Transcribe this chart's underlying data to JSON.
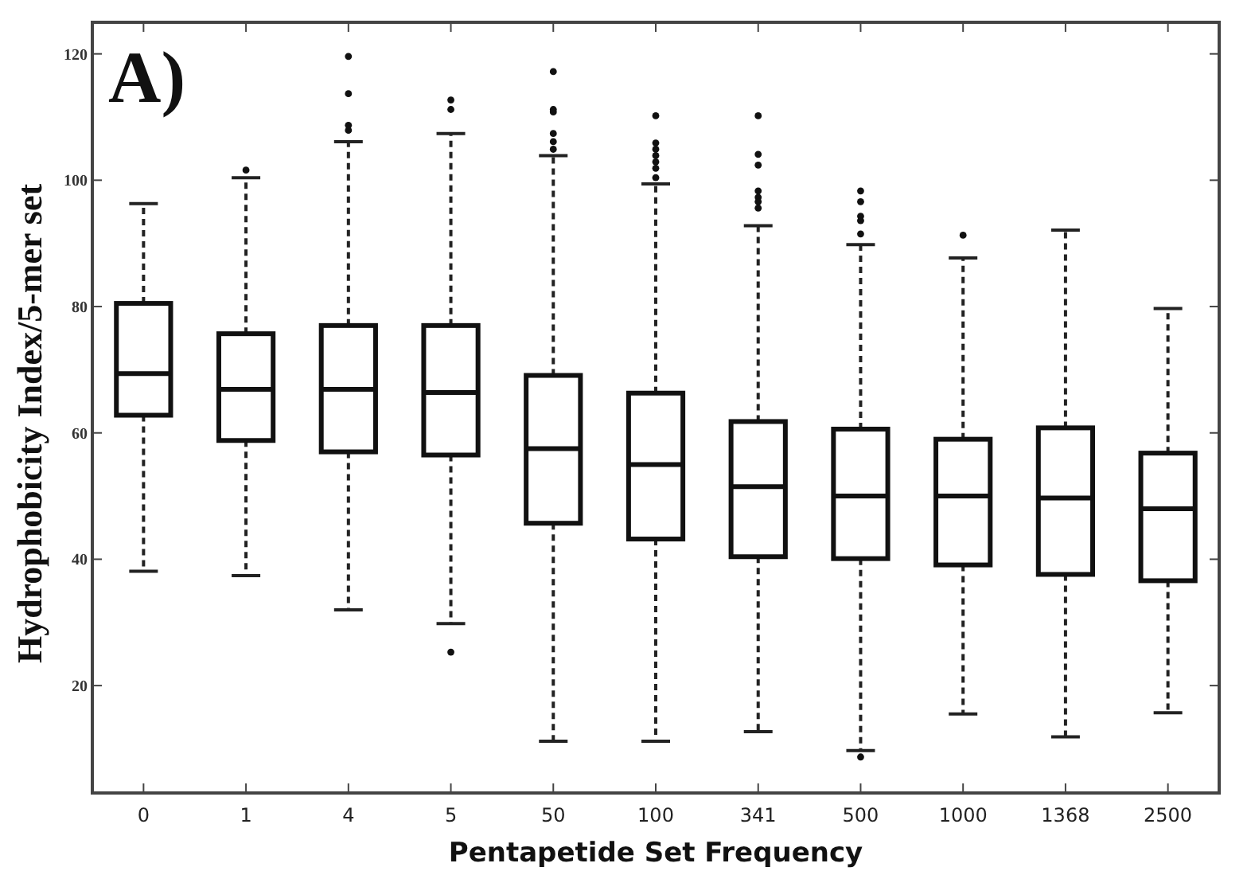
{
  "chart_data": {
    "type": "box",
    "xlabel": "Pentapetide Set Frequency",
    "ylabel": "Hydrophobicity Index/5-mer set",
    "annotations": [
      "A)"
    ],
    "categories": [
      "0",
      "1",
      "4",
      "5",
      "50",
      "100",
      "341",
      "500",
      "1000",
      "1368",
      "2500"
    ],
    "ylim": [
      3,
      125
    ],
    "yticks": [
      20,
      40,
      60,
      80,
      100,
      120
    ],
    "grid": false,
    "boxes": [
      {
        "low": 38.1,
        "q1": 62.8,
        "median": 69.4,
        "q3": 80.5,
        "high": 96.3
      },
      {
        "low": 37.4,
        "q1": 58.8,
        "median": 66.9,
        "q3": 75.7,
        "high": 100.4,
        "outliers": [
          101.6
        ]
      },
      {
        "low": 32,
        "q1": 57,
        "median": 66.9,
        "q3": 77,
        "high": 106.1,
        "outliers": [
          119.6,
          113.7,
          108.7,
          107.9
        ]
      },
      {
        "low": 29.8,
        "q1": 56.5,
        "median": 66.4,
        "q3": 77,
        "high": 107.4,
        "outliers": [
          112.7,
          111.2,
          25.3
        ]
      },
      {
        "low": 11.2,
        "q1": 45.7,
        "median": 57.5,
        "q3": 69.1,
        "high": 103.9,
        "outliers": [
          117.2,
          111.2,
          110.8,
          107.4,
          106.1,
          104.9
        ]
      },
      {
        "low": 11.2,
        "q1": 43.2,
        "median": 55,
        "q3": 66.3,
        "high": 99.4,
        "outliers": [
          110.2,
          105.9,
          104.9,
          103.9,
          102.9,
          101.9,
          100.4
        ]
      },
      {
        "low": 12.7,
        "q1": 40.4,
        "median": 51.5,
        "q3": 61.8,
        "high": 92.8,
        "outliers": [
          110.2,
          104.1,
          102.4,
          98.3,
          97.3,
          96.6,
          95.6
        ]
      },
      {
        "low": 9.7,
        "q1": 40.1,
        "median": 50,
        "q3": 60.6,
        "high": 89.8,
        "outliers": [
          98.3,
          96.6,
          94.3,
          93.6,
          91.5,
          8.7
        ]
      },
      {
        "low": 15.5,
        "q1": 39.1,
        "median": 50,
        "q3": 59,
        "high": 87.7,
        "outliers": [
          91.3
        ]
      },
      {
        "low": 11.9,
        "q1": 37.6,
        "median": 49.7,
        "q3": 60.8,
        "high": 92.1
      },
      {
        "low": 15.7,
        "q1": 36.6,
        "median": 48,
        "q3": 56.8,
        "high": 79.7
      }
    ]
  }
}
